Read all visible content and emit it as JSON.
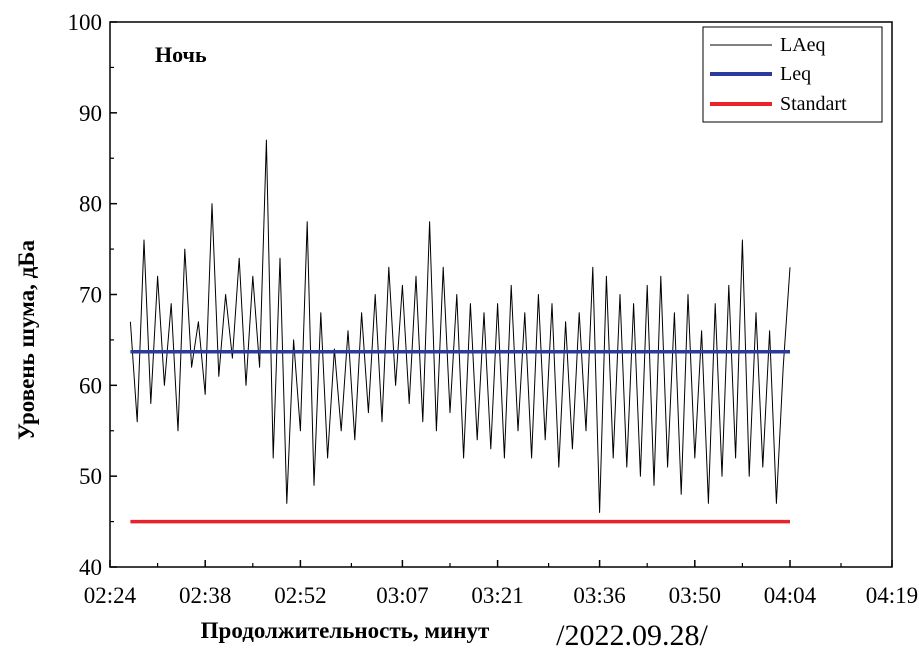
{
  "chart_data": {
    "type": "line",
    "title": "",
    "annotation": "Ночь",
    "xlabel": "Продолжительность, минут",
    "ylabel": "Уровень шума, дБа",
    "date_note": "/2022.09.28/",
    "x_ticks": [
      "02:24",
      "02:38",
      "02:52",
      "03:07",
      "03:21",
      "03:36",
      "03:50",
      "04:04",
      "04:19"
    ],
    "x_tick_minutes": [
      144,
      158,
      172,
      187,
      201,
      216,
      230,
      244,
      259
    ],
    "xlim": [
      144,
      259
    ],
    "ylim": [
      40,
      100
    ],
    "y_ticks": [
      40,
      50,
      60,
      70,
      80,
      90,
      100
    ],
    "grid": false,
    "legend_position": "top-right",
    "series": [
      {
        "name": "LAeq",
        "color": "#000000",
        "style": "thin-line",
        "x": [
          147.0,
          148.0,
          149.0,
          150.0,
          151.0,
          152.0,
          153.0,
          154.0,
          155.0,
          156.0,
          157.0,
          158.0,
          159.0,
          160.0,
          161.0,
          162.0,
          163.0,
          164.0,
          165.0,
          166.0,
          167.0,
          168.0,
          169.0,
          170.0,
          171.0,
          172.0,
          173.0,
          174.0,
          175.0,
          176.0,
          177.0,
          178.0,
          179.0,
          180.0,
          181.0,
          182.0,
          183.0,
          184.0,
          185.0,
          186.0,
          187.0,
          188.0,
          189.0,
          190.0,
          191.0,
          192.0,
          193.0,
          194.0,
          195.0,
          196.0,
          197.0,
          198.0,
          199.0,
          200.0,
          201.0,
          202.0,
          203.0,
          204.0,
          205.0,
          206.0,
          207.0,
          208.0,
          209.0,
          210.0,
          211.0,
          212.0,
          213.0,
          214.0,
          215.0,
          216.0,
          217.0,
          218.0,
          219.0,
          220.0,
          221.0,
          222.0,
          223.0,
          224.0,
          225.0,
          226.0,
          227.0,
          228.0,
          229.0,
          230.0,
          231.0,
          232.0,
          233.0,
          234.0,
          235.0,
          236.0,
          237.0,
          238.0,
          239.0,
          240.0,
          241.0,
          242.0,
          243.0,
          244.0
        ],
        "values": [
          67,
          56,
          76,
          58,
          72,
          60,
          69,
          55,
          75,
          62,
          67,
          59,
          80,
          61,
          70,
          63,
          74,
          60,
          72,
          62,
          87,
          52,
          74,
          47,
          65,
          55,
          78,
          49,
          68,
          52,
          64,
          55,
          66,
          54,
          68,
          57,
          70,
          56,
          73,
          60,
          71,
          58,
          72,
          56,
          78,
          55,
          73,
          57,
          70,
          52,
          69,
          54,
          68,
          53,
          69,
          52,
          71,
          55,
          68,
          52,
          70,
          54,
          69,
          51,
          67,
          53,
          68,
          55,
          73,
          46,
          72,
          52,
          70,
          51,
          69,
          50,
          71,
          49,
          72,
          51,
          68,
          48,
          70,
          52,
          66,
          47,
          69,
          50,
          71,
          52,
          76,
          50,
          68,
          51,
          66,
          47,
          62,
          73
        ]
      },
      {
        "name": "Leq",
        "color": "#2b3a9c",
        "style": "thick-line",
        "x": [
          147,
          244
        ],
        "values": [
          63.7,
          63.7
        ]
      },
      {
        "name": "Standart",
        "color": "#e8232a",
        "style": "thick-line",
        "x": [
          147,
          244
        ],
        "values": [
          45,
          45
        ]
      }
    ]
  }
}
